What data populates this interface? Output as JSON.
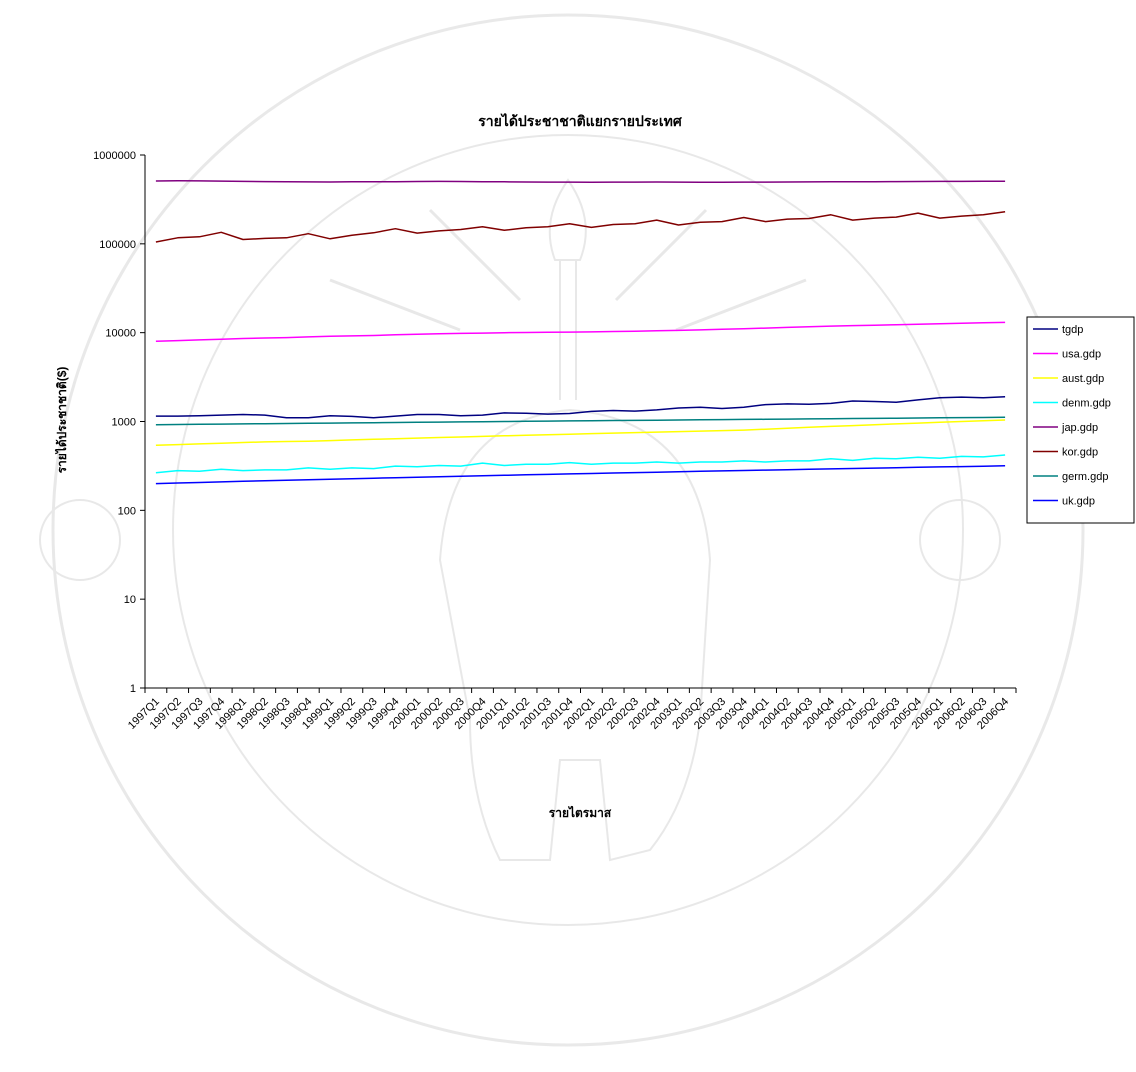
{
  "chart_data": {
    "type": "line",
    "title": "รายได้ประชาชาติแยกรายประเทศ",
    "xlabel": "รายไตรมาส",
    "ylabel": "รายได้ประชาชาติ($)",
    "yscale": "log",
    "ylim": [
      1,
      1000000
    ],
    "y_ticks": [
      "1",
      "10",
      "100",
      "1000",
      "10000",
      "100000",
      "1000000"
    ],
    "grid": false,
    "legend_position": "right",
    "watermark": "CHIANG MAI UNIVERSITY 1964",
    "categories": [
      "1997Q1",
      "1997Q2",
      "1997Q3",
      "1997Q4",
      "1998Q1",
      "1998Q2",
      "1998Q3",
      "1998Q4",
      "1999Q1",
      "1999Q2",
      "1999Q3",
      "1999Q4",
      "2000Q1",
      "2000Q2",
      "2000Q3",
      "2000Q4",
      "2001Q1",
      "2001Q2",
      "2001Q3",
      "2001Q4",
      "2002Q1",
      "2002Q2",
      "2002Q3",
      "2002Q4",
      "2003Q1",
      "2003Q2",
      "2003Q3",
      "2003Q4",
      "2004Q1",
      "2004Q2",
      "2004Q3",
      "2004Q4",
      "2005Q1",
      "2005Q2",
      "2005Q3",
      "2005Q4",
      "2006Q1",
      "2006Q2",
      "2006Q3",
      "2006Q4"
    ],
    "series": [
      {
        "name": "tgdp",
        "color": "#000080",
        "values": [
          1150,
          1150,
          1160,
          1180,
          1200,
          1180,
          1100,
          1100,
          1160,
          1140,
          1100,
          1150,
          1200,
          1200,
          1160,
          1180,
          1250,
          1240,
          1210,
          1230,
          1300,
          1330,
          1310,
          1350,
          1420,
          1450,
          1400,
          1450,
          1550,
          1580,
          1560,
          1600,
          1700,
          1680,
          1650,
          1750,
          1850,
          1880,
          1850,
          1900
        ]
      },
      {
        "name": "usa.gdp",
        "color": "#ff00ff",
        "values": [
          8000,
          8150,
          8300,
          8450,
          8600,
          8700,
          8800,
          8950,
          9100,
          9200,
          9300,
          9450,
          9600,
          9700,
          9800,
          9900,
          10000,
          10050,
          10100,
          10150,
          10200,
          10300,
          10400,
          10500,
          10600,
          10750,
          10900,
          11050,
          11250,
          11450,
          11650,
          11850,
          12000,
          12150,
          12300,
          12450,
          12600,
          12750,
          12900,
          13050
        ]
      },
      {
        "name": "aust.gdp",
        "color": "#ffff00",
        "values": [
          540,
          550,
          560,
          570,
          580,
          590,
          595,
          600,
          610,
          620,
          630,
          640,
          650,
          660,
          670,
          680,
          690,
          700,
          710,
          720,
          730,
          740,
          750,
          760,
          770,
          780,
          790,
          800,
          820,
          840,
          860,
          880,
          900,
          920,
          940,
          960,
          980,
          1000,
          1020,
          1040
        ]
      },
      {
        "name": "denm.gdp",
        "color": "#00ffff",
        "values": [
          265,
          280,
          275,
          290,
          280,
          285,
          285,
          300,
          290,
          300,
          295,
          315,
          310,
          320,
          315,
          340,
          320,
          330,
          330,
          345,
          330,
          340,
          340,
          350,
          340,
          350,
          350,
          360,
          350,
          360,
          360,
          380,
          365,
          385,
          380,
          395,
          385,
          405,
          400,
          420
        ]
      },
      {
        "name": "jap.gdp",
        "color": "#800080",
        "values": [
          510000,
          512000,
          511000,
          508000,
          505000,
          502000,
          500000,
          498000,
          497000,
          499000,
          500000,
          501000,
          503000,
          504000,
          503000,
          500000,
          499000,
          497000,
          496000,
          495000,
          494000,
          495000,
          496000,
          497000,
          495000,
          493000,
          494000,
          495000,
          496000,
          497000,
          498000,
          499000,
          500000,
          501000,
          502000,
          503000,
          504000,
          505000,
          506000,
          507000
        ]
      },
      {
        "name": "kor.gdp",
        "color": "#800000",
        "values": [
          105000,
          117000,
          120000,
          135000,
          112000,
          115000,
          117000,
          130000,
          114000,
          125000,
          133000,
          148000,
          132000,
          140000,
          145000,
          156000,
          142000,
          152000,
          156000,
          168000,
          153000,
          165000,
          168000,
          185000,
          163000,
          175000,
          178000,
          198000,
          178000,
          190000,
          193000,
          212000,
          185000,
          195000,
          200000,
          222000,
          195000,
          205000,
          212000,
          230000
        ]
      },
      {
        "name": "germ.gdp",
        "color": "#008080",
        "values": [
          920,
          925,
          930,
          935,
          940,
          945,
          950,
          955,
          960,
          965,
          970,
          975,
          980,
          985,
          990,
          995,
          1000,
          1005,
          1010,
          1015,
          1020,
          1025,
          1030,
          1035,
          1040,
          1045,
          1050,
          1055,
          1060,
          1065,
          1070,
          1075,
          1080,
          1085,
          1090,
          1095,
          1100,
          1105,
          1110,
          1115
        ]
      },
      {
        "name": "uk.gdp",
        "color": "#0000ff",
        "values": [
          200,
          203,
          206,
          209,
          212,
          215,
          218,
          221,
          224,
          227,
          230,
          233,
          236,
          239,
          242,
          245,
          248,
          251,
          254,
          257,
          260,
          263,
          266,
          269,
          272,
          275,
          278,
          281,
          284,
          287,
          290,
          293,
          296,
          299,
          302,
          305,
          308,
          311,
          314,
          317
        ]
      }
    ]
  }
}
